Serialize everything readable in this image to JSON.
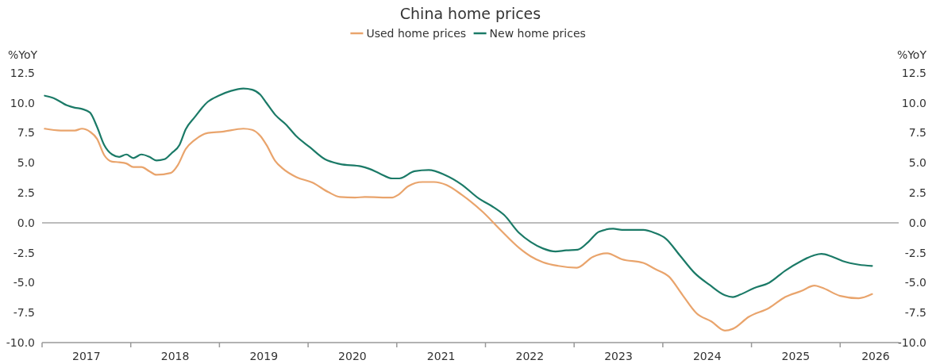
{
  "chart_data": {
    "type": "line",
    "title": "China home prices",
    "ylabel": "%YoY",
    "y2label": "%YoY",
    "legend": "top",
    "xlim": [
      2017.0,
      2026.66
    ],
    "xticks": [
      {
        "value": 2017,
        "label": null
      },
      {
        "value": 2018,
        "label": null
      },
      {
        "value": 2019,
        "label": null
      },
      {
        "value": 2020,
        "label": null
      },
      {
        "value": 2021,
        "label": null
      },
      {
        "value": 2022,
        "label": null
      },
      {
        "value": 2023,
        "label": null
      },
      {
        "value": 2024,
        "label": null
      },
      {
        "value": 2025,
        "label": null
      },
      {
        "value": 2026,
        "label": null
      },
      {
        "value": 2017.5,
        "label": "2017"
      },
      {
        "value": 2018.5,
        "label": "2018"
      },
      {
        "value": 2019.5,
        "label": "2019"
      },
      {
        "value": 2020.5,
        "label": "2020"
      },
      {
        "value": 2021.5,
        "label": "2021"
      },
      {
        "value": 2022.5,
        "label": "2022"
      },
      {
        "value": 2023.5,
        "label": "2023"
      },
      {
        "value": 2024.5,
        "label": "2024"
      },
      {
        "value": 2025.5,
        "label": "2025"
      },
      {
        "value": 2026.4,
        "label": "2026"
      }
    ],
    "ylim": [
      -10,
      12.5
    ],
    "yticks": [
      {
        "value": -10,
        "label": "-10.0"
      },
      {
        "value": -7.5,
        "label": "-7.5"
      },
      {
        "value": -5,
        "label": "-5.0"
      },
      {
        "value": -2.5,
        "label": "-2.5"
      },
      {
        "value": 0,
        "label": "0.0"
      },
      {
        "value": 2.5,
        "label": "2.5"
      },
      {
        "value": 5,
        "label": "5.0"
      },
      {
        "value": 7.5,
        "label": "7.5"
      },
      {
        "value": 10,
        "label": "10.0"
      },
      {
        "value": 12.5,
        "label": "12.5"
      }
    ],
    "y2lim": [
      -10,
      12.5
    ],
    "y2ticks": [
      {
        "value": -10,
        "label": "-10.0"
      },
      {
        "value": -7.5,
        "label": "-7.5"
      },
      {
        "value": -5,
        "label": "-5.0"
      },
      {
        "value": -2.5,
        "label": "-2.5"
      },
      {
        "value": 0,
        "label": "0.0"
      },
      {
        "value": 2.5,
        "label": "2.5"
      },
      {
        "value": 5,
        "label": "5.0"
      },
      {
        "value": 7.5,
        "label": "7.5"
      },
      {
        "value": 10,
        "label": "10.0"
      },
      {
        "value": 12.5,
        "label": "12.5"
      }
    ],
    "ref_lines": [
      {
        "axis": "y",
        "value": 0,
        "color": "#a6a6a6"
      }
    ],
    "series": [
      {
        "name": "Used home prices",
        "color": "#e9a46c",
        "x": [
          2017.03,
          2017.21,
          2017.37,
          2017.45,
          2017.54,
          2017.62,
          2017.7,
          2017.79,
          2017.87,
          2017.95,
          2018.03,
          2018.12,
          2018.21,
          2018.29,
          2018.45,
          2018.53,
          2018.62,
          2018.72,
          2018.87,
          2019.03,
          2019.27,
          2019.37,
          2019.46,
          2019.53,
          2019.63,
          2019.71,
          2019.87,
          2020.05,
          2020.23,
          2020.36,
          2020.53,
          2020.64,
          2020.95,
          2021.01,
          2021.13,
          2021.29,
          2021.42,
          2021.56,
          2021.73,
          2021.97,
          2022.17,
          2022.38,
          2022.51,
          2022.65,
          2022.82,
          2023.03,
          2023.21,
          2023.37,
          2023.54,
          2023.78,
          2023.91,
          2024.07,
          2024.22,
          2024.38,
          2024.55,
          2024.7,
          2024.79,
          2024.97,
          2025.2,
          2025.38,
          2025.56,
          2025.71,
          2025.79,
          2026.0,
          2026.21,
          2026.36
        ],
        "values": [
          7.85,
          7.7,
          7.7,
          7.85,
          7.6,
          7.0,
          5.65,
          5.1,
          5.05,
          4.95,
          4.65,
          4.65,
          4.3,
          4.0,
          4.15,
          4.8,
          6.15,
          6.9,
          7.5,
          7.6,
          7.85,
          7.75,
          7.25,
          6.5,
          5.15,
          4.55,
          3.8,
          3.35,
          2.55,
          2.15,
          2.1,
          2.15,
          2.1,
          2.3,
          3.05,
          3.4,
          3.4,
          3.15,
          2.35,
          0.9,
          -0.6,
          -2.1,
          -2.8,
          -3.3,
          -3.6,
          -3.75,
          -2.85,
          -2.55,
          -3.05,
          -3.35,
          -3.85,
          -4.5,
          -6.0,
          -7.55,
          -8.25,
          -9.0,
          -8.85,
          -7.85,
          -7.1,
          -6.2,
          -5.7,
          -5.25,
          -5.4,
          -6.1,
          -6.3,
          -5.95
        ]
      },
      {
        "name": "New home prices",
        "color": "#1b7a67",
        "x": [
          2017.03,
          2017.13,
          2017.28,
          2017.37,
          2017.45,
          2017.54,
          2017.62,
          2017.7,
          2017.79,
          2017.87,
          2017.95,
          2018.03,
          2018.12,
          2018.21,
          2018.29,
          2018.38,
          2018.46,
          2018.55,
          2018.62,
          2018.72,
          2018.87,
          2018.99,
          2019.13,
          2019.27,
          2019.37,
          2019.46,
          2019.53,
          2019.63,
          2019.75,
          2019.87,
          2020.02,
          2020.19,
          2020.36,
          2020.6,
          2020.69,
          2020.81,
          2020.95,
          2021.03,
          2021.2,
          2021.36,
          2021.54,
          2021.73,
          2021.93,
          2022.07,
          2022.21,
          2022.38,
          2022.51,
          2022.65,
          2022.79,
          2022.91,
          2023.04,
          2023.16,
          2023.28,
          2023.44,
          2023.54,
          2023.78,
          2023.91,
          2024.03,
          2024.19,
          2024.36,
          2024.53,
          2024.7,
          2024.79,
          2024.87,
          2025.03,
          2025.2,
          2025.38,
          2025.56,
          2025.71,
          2025.79,
          2025.9,
          2026.03,
          2026.21,
          2026.36
        ],
        "values": [
          10.6,
          10.4,
          9.8,
          9.6,
          9.5,
          9.2,
          8.0,
          6.5,
          5.7,
          5.5,
          5.7,
          5.4,
          5.7,
          5.5,
          5.2,
          5.3,
          5.8,
          6.5,
          7.8,
          8.8,
          10.1,
          10.6,
          11.0,
          11.2,
          11.1,
          10.7,
          10.0,
          9.0,
          8.2,
          7.2,
          6.3,
          5.3,
          4.9,
          4.7,
          4.5,
          4.1,
          3.7,
          3.7,
          4.3,
          4.4,
          4.0,
          3.2,
          2.0,
          1.4,
          0.65,
          -0.85,
          -1.6,
          -2.15,
          -2.4,
          -2.3,
          -2.25,
          -1.6,
          -0.75,
          -0.5,
          -0.6,
          -0.6,
          -0.85,
          -1.3,
          -2.7,
          -4.2,
          -5.2,
          -6.05,
          -6.2,
          -6.0,
          -5.45,
          -5.0,
          -4.0,
          -3.2,
          -2.7,
          -2.6,
          -2.8,
          -3.2,
          -3.5,
          -3.6
        ]
      }
    ]
  }
}
